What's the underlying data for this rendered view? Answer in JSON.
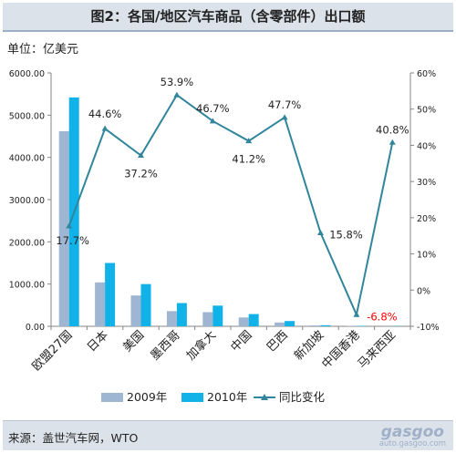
{
  "header": {
    "title": "图2：各国/地区汽车商品（含零部件）出口额"
  },
  "unit_label": "单位：亿美元",
  "source": {
    "text": "来源：盖世汽车网，WTO"
  },
  "watermark": {
    "logo": "gasgoo",
    "url": "auto.gasgoo.com"
  },
  "colors": {
    "bar_2009": "#9fb6d3",
    "bar_2010": "#10b2e8",
    "line": "#31859c",
    "neg_label": "#ff0000"
  },
  "chart_data": {
    "type": "bar",
    "categories": [
      "欧盟27国",
      "日本",
      "美国",
      "墨西哥",
      "加拿大",
      "中国",
      "巴西",
      "新加坡",
      "中国香港",
      "马来西亚"
    ],
    "series": [
      {
        "name": "2009年",
        "type": "bar",
        "axis": "left",
        "values": [
          4620,
          1040,
          730,
          360,
          335,
          210,
          90,
          22,
          8,
          4
        ]
      },
      {
        "name": "2010年",
        "type": "bar",
        "axis": "left",
        "values": [
          5420,
          1500,
          1000,
          550,
          490,
          290,
          125,
          25,
          9,
          6
        ]
      },
      {
        "name": "同比变化",
        "type": "line",
        "axis": "right",
        "values": [
          17.7,
          44.6,
          37.2,
          53.9,
          46.7,
          41.2,
          47.7,
          15.8,
          -6.8,
          40.8
        ],
        "labels": [
          "17.7%",
          "44.6%",
          "37.2%",
          "53.9%",
          "46.7%",
          "41.2%",
          "47.7%",
          "15.8%",
          "-6.8%",
          "40.8%"
        ]
      }
    ],
    "y_left": {
      "min": 0,
      "max": 6000,
      "ticks": [
        "0.00",
        "1000.00",
        "2000.00",
        "3000.00",
        "4000.00",
        "5000.00",
        "6000.00"
      ]
    },
    "y_right": {
      "min": -10,
      "max": 60,
      "ticks": [
        "-10%",
        "0%",
        "10%",
        "20%",
        "30%",
        "40%",
        "50%",
        "60%"
      ]
    },
    "legend_position": "bottom",
    "grid": false
  }
}
